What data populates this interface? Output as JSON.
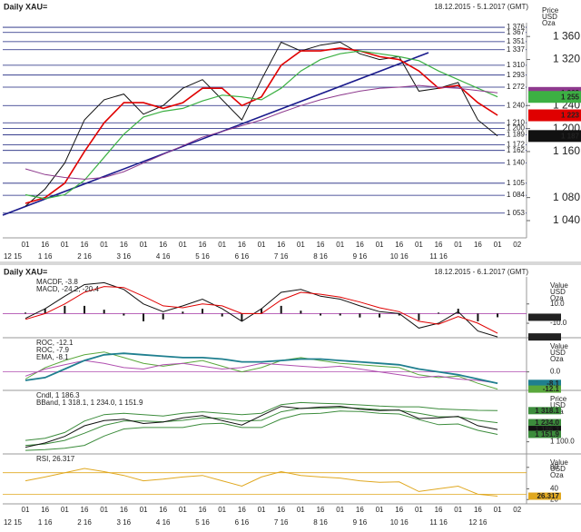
{
  "chart_data": [
    {
      "type": "line",
      "title": "Daily XAU=",
      "subtitle": "18.12.2015 - 5.1.2017 (GMT)",
      "unit_label": [
        "Price",
        "USD",
        "Oza"
      ],
      "x": [
        "01",
        "16",
        "01",
        "16",
        "01",
        "16",
        "01",
        "16",
        "01",
        "16",
        "01",
        "16",
        "01",
        "16",
        "01",
        "16",
        "01",
        "16",
        "01",
        "16",
        "01",
        "16",
        "01",
        "16",
        "01",
        "02"
      ],
      "months": [
        "12 15",
        "1 16",
        "2 16",
        "3 16",
        "4 16",
        "5 16",
        "6 16",
        "7 16",
        "8 16",
        "9 16",
        "10 16",
        "11 16"
      ],
      "ylim": [
        1010,
        1384
      ],
      "yticks": [
        {
          "value": 1360,
          "label": "1 360"
        },
        {
          "value": 1320,
          "label": "1 320"
        },
        {
          "value": 1240,
          "label": "1 240"
        },
        {
          "value": 1200,
          "label": "1 200"
        },
        {
          "value": 1160,
          "label": "1 160"
        },
        {
          "value": 1080,
          "label": "1 080"
        },
        {
          "value": 1040,
          "label": "1 040"
        }
      ],
      "levels": [
        {
          "value": 1376,
          "label": "1 376"
        },
        {
          "value": 1367,
          "label": "1 367"
        },
        {
          "value": 1351,
          "label": "1 351"
        },
        {
          "value": 1337,
          "label": "1 337"
        },
        {
          "value": 1310,
          "label": "1 310"
        },
        {
          "value": 1293,
          "label": "1 293"
        },
        {
          "value": 1272,
          "label": "1 272"
        },
        {
          "value": 1240,
          "label": "1 240"
        },
        {
          "value": 1210,
          "label": "1 210"
        },
        {
          "value": 1200,
          "label": "1 200"
        },
        {
          "value": 1189,
          "label": "1 189"
        },
        {
          "value": 1172,
          "label": "1 172"
        },
        {
          "value": 1162,
          "label": "1 162"
        },
        {
          "value": 1140,
          "label": "1 140"
        },
        {
          "value": 1105,
          "label": "1 105"
        },
        {
          "value": 1084,
          "label": "1 084"
        },
        {
          "value": 1053,
          "label": "1 053"
        }
      ],
      "level_color": "#1a237e",
      "markers": [
        {
          "value": 1262,
          "label": "1 262",
          "color": "#8e3a8e"
        },
        {
          "value": 1255,
          "label": "1 255",
          "color": "#3cb043"
        },
        {
          "value": 1223,
          "label": "1 223",
          "color": "#e00000"
        },
        {
          "value": 1187,
          "label": "1 187",
          "color": "#111111"
        }
      ],
      "series": [
        {
          "style": "line",
          "color": "#111111",
          "width": 1,
          "values": [
            1065,
            1095,
            1140,
            1215,
            1250,
            1260,
            1225,
            1240,
            1270,
            1285,
            1250,
            1215,
            1285,
            1350,
            1335,
            1345,
            1350,
            1330,
            1320,
            1325,
            1265,
            1270,
            1280,
            1215,
            1187,
            null
          ]
        },
        {
          "style": "line",
          "color": "#e00000",
          "width": 1.6,
          "values": [
            1070,
            1080,
            1105,
            1160,
            1210,
            1245,
            1245,
            1235,
            1245,
            1270,
            1270,
            1240,
            1255,
            1310,
            1335,
            1335,
            1340,
            1335,
            1325,
            1320,
            1300,
            1270,
            1275,
            1245,
            1223,
            null
          ]
        },
        {
          "style": "line",
          "color": "#3cb043",
          "width": 1.2,
          "values": [
            1085,
            1078,
            1085,
            1110,
            1150,
            1190,
            1220,
            1230,
            1235,
            1248,
            1258,
            1255,
            1250,
            1270,
            1300,
            1320,
            1330,
            1335,
            1330,
            1325,
            1318,
            1300,
            1285,
            1270,
            1255,
            null
          ]
        },
        {
          "style": "line",
          "color": "#8e3a8e",
          "width": 1,
          "values": [
            1130,
            1120,
            1115,
            1112,
            1115,
            1125,
            1140,
            1155,
            1170,
            1185,
            1195,
            1205,
            1215,
            1228,
            1240,
            1250,
            1258,
            1265,
            1270,
            1272,
            1275,
            1272,
            1270,
            1266,
            1262,
            null
          ]
        }
      ]
    },
    {
      "type": "indicators",
      "title": "Daily XAU=",
      "subtitle": "18.12.2015 - 6.1.2017 (GMT)",
      "x": [
        "01",
        "16",
        "01",
        "16",
        "01",
        "16",
        "01",
        "16",
        "01",
        "16",
        "01",
        "16",
        "01",
        "16",
        "01",
        "16",
        "01",
        "16",
        "01",
        "16",
        "01",
        "16",
        "01",
        "16",
        "01",
        "02"
      ],
      "months": [
        "12 15",
        "1 16",
        "2 16",
        "3 16",
        "4 16",
        "5 16",
        "6 16",
        "7 16",
        "8 16",
        "9 16",
        "10 16",
        "11 16",
        "12 16"
      ],
      "panels": [
        {
          "legend": [
            {
              "text": "MACDF, -3.8",
              "color": "#111111"
            },
            {
              "text": "MACD, -24.2, -20.4",
              "color": "#111111"
            }
          ],
          "unit_label": [
            "Value",
            "USD",
            "Oza"
          ],
          "ylim": [
            -25,
            38
          ],
          "yticks": [
            {
              "value": 10,
              "label": "10.0"
            },
            {
              "value": -10,
              "label": "-10.0"
            }
          ],
          "levels": [
            0
          ],
          "markers": [
            {
              "value": -3.8,
              "color": "#222222"
            },
            {
              "value": -24.2,
              "color": "#222222"
            }
          ],
          "series": [
            {
              "style": "hist",
              "color": "#111111",
              "values": [
                1,
                5,
                8,
                8,
                4,
                -2,
                -8,
                -6,
                2,
                5,
                -3,
                -8,
                5,
                8,
                3,
                -2,
                -2,
                -4,
                -4,
                -2,
                -7,
                1,
                5,
                -8,
                -3.8,
                null
              ]
            },
            {
              "style": "line",
              "color": "#111111",
              "values": [
                -5,
                5,
                18,
                30,
                32,
                25,
                10,
                2,
                8,
                15,
                5,
                -8,
                5,
                22,
                25,
                18,
                15,
                8,
                2,
                0,
                -15,
                -10,
                2,
                -18,
                -24.2,
                null
              ]
            },
            {
              "style": "line",
              "color": "#e00000",
              "values": [
                -6,
                0,
                10,
                22,
                28,
                27,
                18,
                8,
                6,
                10,
                8,
                0,
                0,
                14,
                22,
                20,
                17,
                12,
                6,
                2,
                -8,
                -11,
                -3,
                -10,
                -20.4,
                null
              ]
            }
          ]
        },
        {
          "legend": [
            {
              "text": "ROC, -12.1",
              "color": "#5aa83c"
            },
            {
              "text": "ROC, -7.9",
              "color": "#b04fb0"
            },
            {
              "text": "EMA, -8.1",
              "color": "#1f7f8f"
            }
          ],
          "unit_label": [
            "Value",
            "USD",
            "Oza"
          ],
          "ylim": [
            -13,
            24
          ],
          "yticks": [
            {
              "value": 0,
              "label": "0.0"
            }
          ],
          "levels": [
            0
          ],
          "markers": [
            {
              "value": -8.1,
              "color": "#1f7f8f"
            },
            {
              "value": -12.1,
              "color": "#5aa83c"
            }
          ],
          "series": [
            {
              "style": "line",
              "color": "#5aa83c",
              "values": [
                -5,
                3,
                8,
                12,
                14,
                10,
                6,
                4,
                6,
                8,
                4,
                0,
                3,
                8,
                10,
                8,
                6,
                5,
                4,
                3,
                -2,
                -4,
                -3,
                -8,
                -12.1,
                null
              ]
            },
            {
              "style": "line",
              "color": "#b04fb0",
              "values": [
                -3,
                2,
                5,
                8,
                6,
                3,
                2,
                5,
                6,
                4,
                2,
                3,
                6,
                5,
                4,
                3,
                4,
                2,
                0,
                -2,
                -4,
                -3,
                -5,
                -6,
                -7.9,
                null
              ]
            },
            {
              "style": "line",
              "color": "#1f7f8f",
              "width": 1.8,
              "values": [
                -6,
                -4,
                2,
                8,
                12,
                13,
                12,
                11,
                10,
                10,
                9,
                7,
                7,
                8,
                9,
                9,
                8,
                7,
                6,
                5,
                2,
                0,
                -2,
                -5,
                -8.1,
                null
              ]
            }
          ]
        },
        {
          "legend": [
            {
              "text": "Cndl, 1 186.3",
              "color": "#111111"
            },
            {
              "text": "BBand, 1 318.1, 1 234.0, 1 151.9",
              "color": "#3c8c3c"
            }
          ],
          "unit_label": [
            "Price",
            "USD",
            "Oza"
          ],
          "ylim": [
            1015,
            1460
          ],
          "yticks": [
            {
              "value": 1100,
              "label": "1 100.0"
            }
          ],
          "levels": [],
          "markers": [
            {
              "value": 1318.1,
              "label": "1 318.1",
              "color": "#3c8c3c"
            },
            {
              "value": 1234.0,
              "label": "1 234.0",
              "color": "#3c8c3c"
            },
            {
              "value": 1186.3,
              "label": "1 186.3",
              "color": "#111111"
            },
            {
              "value": 1151.9,
              "label": "1 151.9",
              "color": "#3c8c3c"
            }
          ],
          "series": [
            {
              "style": "line",
              "color": "#3c8c3c",
              "values": [
                1110,
                1125,
                1165,
                1245,
                1290,
                1300,
                1290,
                1280,
                1300,
                1310,
                1300,
                1290,
                1300,
                1360,
                1375,
                1370,
                1365,
                1358,
                1350,
                1345,
                1345,
                1330,
                1325,
                1320,
                1318.1,
                null
              ]
            },
            {
              "style": "line",
              "color": "#3c8c3c",
              "values": [
                1075,
                1085,
                1110,
                1160,
                1215,
                1245,
                1245,
                1240,
                1250,
                1268,
                1265,
                1245,
                1250,
                1310,
                1335,
                1335,
                1340,
                1335,
                1325,
                1320,
                1300,
                1275,
                1275,
                1250,
                1234.0,
                null
              ]
            },
            {
              "style": "line",
              "color": "#3c8c3c",
              "values": [
                1040,
                1045,
                1055,
                1075,
                1140,
                1190,
                1200,
                1200,
                1200,
                1225,
                1230,
                1200,
                1200,
                1260,
                1295,
                1300,
                1315,
                1312,
                1300,
                1295,
                1255,
                1220,
                1225,
                1180,
                1151.9,
                null
              ]
            },
            {
              "style": "line",
              "color": "#111111",
              "values": [
                1062,
                1092,
                1138,
                1212,
                1248,
                1258,
                1228,
                1238,
                1268,
                1283,
                1248,
                1217,
                1283,
                1348,
                1333,
                1343,
                1348,
                1328,
                1318,
                1323,
                1263,
                1268,
                1278,
                1213,
                1186.3,
                null
              ]
            }
          ]
        },
        {
          "legend": [
            {
              "text": "RSI, 26.317",
              "color": "#d9a020"
            }
          ],
          "unit_label": [
            "Value",
            "USD",
            "Oza"
          ],
          "ylim": [
            12,
            105
          ],
          "yticks": [
            80,
            40,
            20
          ],
          "levels": [
            70,
            30
          ],
          "markers": [
            {
              "value": 26.317,
              "color": "#e0a820"
            }
          ],
          "series": [
            {
              "style": "line",
              "color": "#e0a820",
              "values": [
                55,
                62,
                70,
                78,
                72,
                65,
                55,
                58,
                62,
                65,
                55,
                45,
                62,
                72,
                65,
                62,
                60,
                55,
                52,
                53,
                35,
                40,
                45,
                30,
                26.317,
                null
              ]
            }
          ]
        }
      ]
    }
  ]
}
